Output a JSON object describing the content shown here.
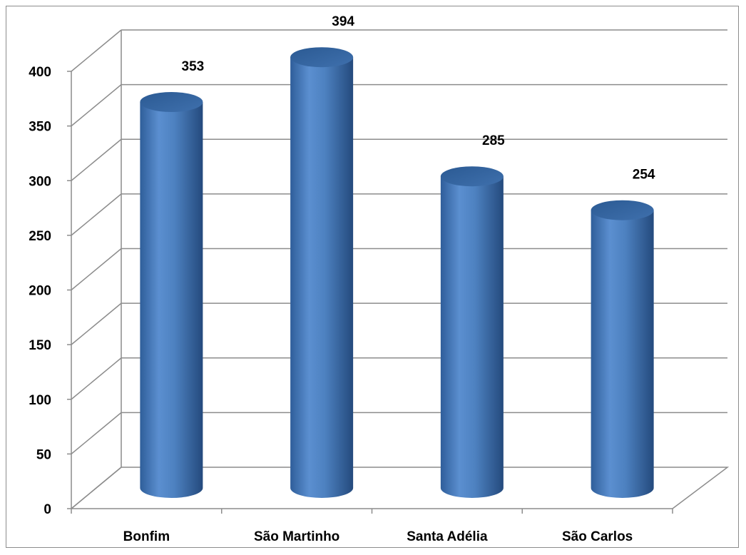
{
  "chart_data": {
    "type": "bar",
    "style": "3d-cylinder",
    "categories": [
      "Bonfim",
      "São Martinho",
      "Santa Adélia",
      "São Carlos"
    ],
    "values": [
      353,
      394,
      285,
      254
    ],
    "data_labels": [
      "353",
      "394",
      "285",
      "254"
    ],
    "ylim": [
      0,
      400
    ],
    "yticks": [
      "0",
      "50",
      "100",
      "150",
      "200",
      "250",
      "300",
      "350",
      "400"
    ],
    "grid": true,
    "legend": "none",
    "bar_color": "#4f81bd"
  }
}
